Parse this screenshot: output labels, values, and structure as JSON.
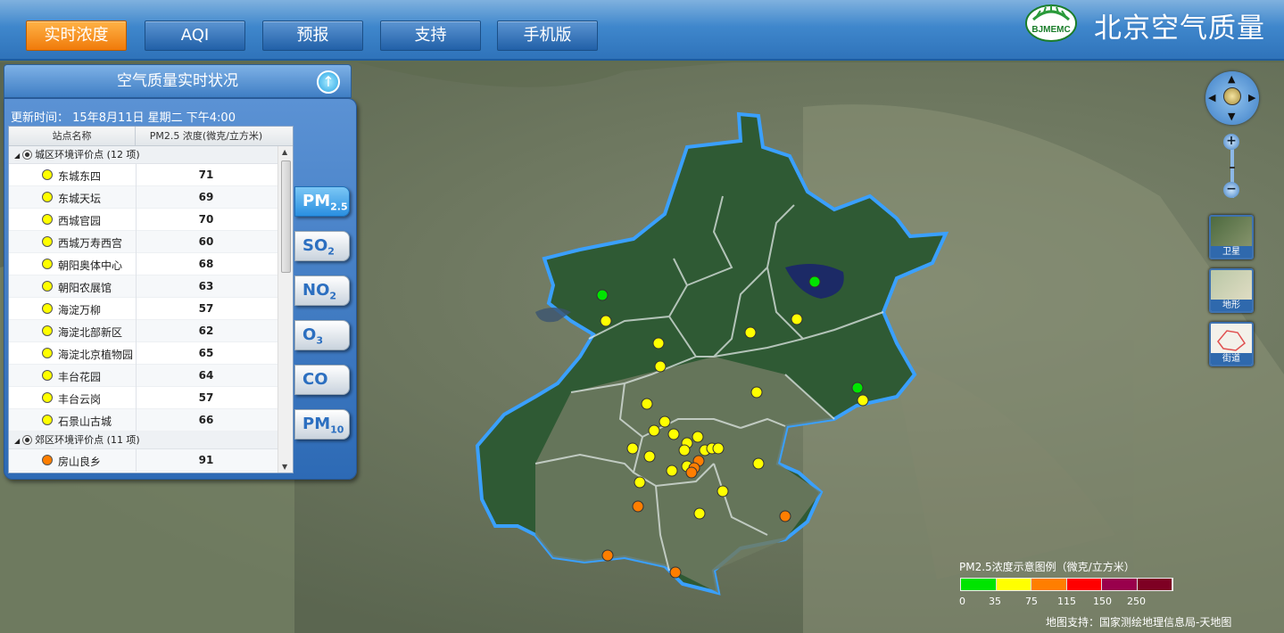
{
  "nav": {
    "items": [
      {
        "label": "实时浓度",
        "active": true
      },
      {
        "label": "AQI",
        "active": false
      },
      {
        "label": "预报",
        "active": false
      },
      {
        "label": "支持",
        "active": false
      },
      {
        "label": "手机版",
        "active": false
      }
    ],
    "logo_text": "BJMEMC",
    "site_title": "北京空气质量"
  },
  "panel": {
    "title": "空气质量实时状况",
    "update_label": "更新时间：",
    "update_time": "15年8月11日 星期二 下午4:00",
    "col_station": "站点名称",
    "col_value": "PM2.5 浓度(微克/立方米)",
    "groups": [
      {
        "label": "城区环境评价点 (12 项)",
        "rows": [
          {
            "name": "东城东四",
            "value": "71",
            "color": "#ffff00"
          },
          {
            "name": "东城天坛",
            "value": "69",
            "color": "#ffff00"
          },
          {
            "name": "西城官园",
            "value": "70",
            "color": "#ffff00"
          },
          {
            "name": "西城万寿西宫",
            "value": "60",
            "color": "#ffff00"
          },
          {
            "name": "朝阳奥体中心",
            "value": "68",
            "color": "#ffff00"
          },
          {
            "name": "朝阳农展馆",
            "value": "63",
            "color": "#ffff00"
          },
          {
            "name": "海淀万柳",
            "value": "57",
            "color": "#ffff00"
          },
          {
            "name": "海淀北部新区",
            "value": "62",
            "color": "#ffff00"
          },
          {
            "name": "海淀北京植物园",
            "value": "65",
            "color": "#ffff00"
          },
          {
            "name": "丰台花园",
            "value": "64",
            "color": "#ffff00"
          },
          {
            "name": "丰台云岗",
            "value": "57",
            "color": "#ffff00"
          },
          {
            "name": "石景山古城",
            "value": "66",
            "color": "#ffff00"
          }
        ]
      },
      {
        "label": "郊区环境评价点 (11 项)",
        "rows": [
          {
            "name": "房山良乡",
            "value": "91",
            "color": "#ff7e00"
          }
        ]
      }
    ]
  },
  "pollutant_tabs": [
    {
      "main": "PM",
      "sub": "2.5",
      "active": true
    },
    {
      "main": "SO",
      "sub": "2",
      "active": false
    },
    {
      "main": "NO",
      "sub": "2",
      "active": false
    },
    {
      "main": "O",
      "sub": "3",
      "active": false
    },
    {
      "main": "CO",
      "sub": "",
      "active": false
    },
    {
      "main": "PM",
      "sub": "10",
      "active": false
    }
  ],
  "map_tools": {
    "layers": [
      {
        "label": "卫星",
        "icon": "satellite-thumb"
      },
      {
        "label": "地形",
        "icon": "terrain-thumb"
      },
      {
        "label": "街道",
        "icon": "street-thumb"
      }
    ],
    "zoom_in": "+",
    "zoom_out": "−"
  },
  "legend": {
    "title": "PM2.5浓度示意图例（微克/立方米）",
    "colors": [
      "#00e400",
      "#ffff00",
      "#ff7e00",
      "#ff0000",
      "#99004c",
      "#7e0023"
    ],
    "labels": [
      "0",
      "35",
      "75",
      "115",
      "150",
      "250"
    ]
  },
  "credit": "地图支持：国家测绘地理信息局-天地图",
  "colors": {
    "accent_active": "#f07a0a",
    "header_blue": "#3f87cc",
    "boundary": "#3aa0ff"
  }
}
